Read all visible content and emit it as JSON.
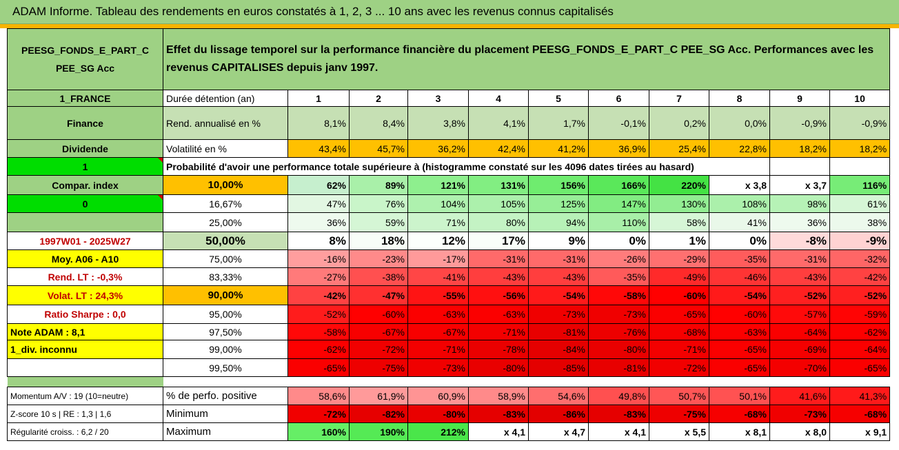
{
  "title": "ADAM Informe. Tableau des rendements en euros constatés à 1, 2, 3 ... 10 ans avec les revenus connus capitalisés",
  "fund": {
    "name_line1": "PEESG_FONDS_E_PART_C",
    "name_line2": "PEE_SG Acc",
    "description": "Effet du lissage temporel sur la performance financière du placement PEESG_FONDS_E_PART_C PEE_SG Acc. Performances avec les revenus CAPITALISES depuis janv 1997."
  },
  "side": {
    "country": "1_FRANCE",
    "sector": "Finance",
    "dividend": "Dividende",
    "one": "1",
    "compar_index": "Compar. index",
    "zero": "0",
    "period": "1997W01 - 2025W27",
    "moy": "Moy. A06 - A10",
    "rend_lt": "Rend. LT :   -0,3%",
    "volat_lt": "Volat. LT :   24,3%",
    "sharpe": "Ratio Sharpe :   0,0",
    "note": "Note ADAM : 8,1",
    "div": "1_div. inconnu",
    "momentum": "Momentum A/V : 19 (10=neutre)",
    "zscore": "Z-score 10 s | RE : 1,3 | 1,6",
    "regularite": "Régularité croiss. : 6,2 / 20"
  },
  "header": {
    "duree_label": "Durée détention (an)",
    "years": [
      "1",
      "2",
      "3",
      "4",
      "5",
      "6",
      "7",
      "8",
      "9",
      "10"
    ],
    "rend_label": "Rend. annualisé en %",
    "rend": [
      "8,1%",
      "8,4%",
      "3,8%",
      "4,1%",
      "1,7%",
      "-0,1%",
      "0,2%",
      "0,0%",
      "-0,9%",
      "-0,9%"
    ],
    "vol_label": "Volatilité en %",
    "vol": [
      "43,4%",
      "45,7%",
      "36,2%",
      "42,4%",
      "41,2%",
      "36,9%",
      "25,4%",
      "22,8%",
      "18,2%",
      "18,2%"
    ],
    "prob_label": "Probabilité d'avoir une performance totale supérieure à (histogramme constaté sur les 4096 dates tirées au hasard)"
  },
  "percentiles": [
    {
      "p": "10,00%",
      "vals": [
        "62%",
        "89%",
        "121%",
        "131%",
        "156%",
        "166%",
        "220%",
        "x 3,8",
        "x 3,7",
        "116%"
      ],
      "colors": [
        "#c6efce",
        "#a9f0a9",
        "#8eef8e",
        "#82ee82",
        "#6fec6f",
        "#5ae85a",
        "#44e244",
        "#ffffff",
        "#ffffff",
        "#77ec77"
      ]
    },
    {
      "p": "16,67%",
      "vals": [
        "47%",
        "76%",
        "104%",
        "105%",
        "125%",
        "147%",
        "130%",
        "108%",
        "98%",
        "61%"
      ],
      "colors": [
        "#e2f7e2",
        "#c9f5c9",
        "#aef1ae",
        "#acf0ac",
        "#97ee97",
        "#82ec82",
        "#92ed92",
        "#abf0ab",
        "#b6f2b6",
        "#d6f6d6"
      ]
    },
    {
      "p": "25,00%",
      "vals": [
        "36%",
        "59%",
        "71%",
        "80%",
        "94%",
        "110%",
        "58%",
        "41%",
        "36%",
        "38%"
      ],
      "colors": [
        "#eefaee",
        "#d5f6d5",
        "#ccf4cc",
        "#c4f3c4",
        "#b7f1b7",
        "#a8efa8",
        "#d6f6d6",
        "#e9f8e9",
        "#eefaee",
        "#ecf9ec"
      ]
    },
    {
      "p": "50,00%",
      "vals": [
        "8%",
        "18%",
        "12%",
        "17%",
        "9%",
        "0%",
        "1%",
        "0%",
        "-8%",
        "-9%"
      ],
      "colors": [
        "#ffffff",
        "#f8fdf8",
        "#fcfffc",
        "#f9fef9",
        "#ffffff",
        "#ffffff",
        "#ffffff",
        "#ffffff",
        "#ffdada",
        "#ffd2d2"
      ]
    },
    {
      "p": "75,00%",
      "vals": [
        "-16%",
        "-23%",
        "-17%",
        "-31%",
        "-31%",
        "-26%",
        "-29%",
        "-35%",
        "-31%",
        "-32%"
      ],
      "colors": [
        "#ff9e9e",
        "#ff8a8a",
        "#ff9a9a",
        "#ff6a6a",
        "#ff6a6a",
        "#ff7c7c",
        "#ff7070",
        "#ff5c5c",
        "#ff6a6a",
        "#ff6666"
      ]
    },
    {
      "p": "83,33%",
      "vals": [
        "-27%",
        "-38%",
        "-41%",
        "-43%",
        "-43%",
        "-35%",
        "-49%",
        "-46%",
        "-43%",
        "-42%"
      ],
      "colors": [
        "#ff7a7a",
        "#ff5050",
        "#ff4646",
        "#ff3e3e",
        "#ff3e3e",
        "#ff5a5a",
        "#ff2a2a",
        "#ff3434",
        "#ff3e3e",
        "#ff4242"
      ]
    },
    {
      "p": "90,00%",
      "vals": [
        "-42%",
        "-47%",
        "-55%",
        "-56%",
        "-54%",
        "-58%",
        "-60%",
        "-54%",
        "-52%",
        "-52%"
      ],
      "colors": [
        "#ff4242",
        "#ff3030",
        "#ff1414",
        "#ff1010",
        "#ff1a1a",
        "#ff0808",
        "#ff0000",
        "#ff1a1a",
        "#ff2020",
        "#ff2020"
      ]
    },
    {
      "p": "95,00%",
      "vals": [
        "-52%",
        "-60%",
        "-63%",
        "-63%",
        "-73%",
        "-73%",
        "-65%",
        "-60%",
        "-57%",
        "-59%"
      ],
      "colors": [
        "#ff1c1c",
        "#ff0000",
        "#fb0000",
        "#fb0000",
        "#f00000",
        "#f00000",
        "#fa0000",
        "#ff0000",
        "#ff0a0a",
        "#ff0404"
      ]
    },
    {
      "p": "97,50%",
      "vals": [
        "-58%",
        "-67%",
        "-67%",
        "-71%",
        "-81%",
        "-76%",
        "-68%",
        "-63%",
        "-64%",
        "-62%"
      ],
      "colors": [
        "#ff0808",
        "#f70000",
        "#f70000",
        "#f30000",
        "#e80000",
        "#ed0000",
        "#f60000",
        "#fb0000",
        "#fa0000",
        "#fc0000"
      ]
    },
    {
      "p": "99,00%",
      "vals": [
        "-62%",
        "-72%",
        "-71%",
        "-78%",
        "-84%",
        "-80%",
        "-71%",
        "-65%",
        "-69%",
        "-64%"
      ],
      "colors": [
        "#fc0000",
        "#f10000",
        "#f30000",
        "#ea0000",
        "#e50000",
        "#e90000",
        "#f30000",
        "#fa0000",
        "#f50000",
        "#fa0000"
      ]
    },
    {
      "p": "99,50%",
      "vals": [
        "-65%",
        "-75%",
        "-73%",
        "-80%",
        "-85%",
        "-81%",
        "-72%",
        "-65%",
        "-70%",
        "-65%"
      ],
      "colors": [
        "#fa0000",
        "#ee0000",
        "#f00000",
        "#e90000",
        "#e40000",
        "#e80000",
        "#f10000",
        "#fa0000",
        "#f40000",
        "#fa0000"
      ]
    }
  ],
  "stats": {
    "pos_label": "% de perfo. positive",
    "pos": [
      "58,6%",
      "61,9%",
      "60,9%",
      "58,9%",
      "54,6%",
      "49,8%",
      "50,7%",
      "50,1%",
      "41,6%",
      "41,3%"
    ],
    "pos_colors": [
      "#ff8a8a",
      "#ff9a9a",
      "#ff9494",
      "#ff8a8a",
      "#ff6e6e",
      "#ff5050",
      "#ff5656",
      "#ff5252",
      "#ff1c1c",
      "#ff1a1a"
    ],
    "min_label": "Minimum",
    "min": [
      "-72%",
      "-82%",
      "-80%",
      "-83%",
      "-86%",
      "-83%",
      "-75%",
      "-68%",
      "-73%",
      "-68%"
    ],
    "min_colors": [
      "#f10000",
      "#e60000",
      "#e90000",
      "#e50000",
      "#e30000",
      "#e50000",
      "#ee0000",
      "#f60000",
      "#f00000",
      "#f60000"
    ],
    "max_label": "Maximum",
    "max": [
      "160%",
      "190%",
      "212%",
      "x 4,1",
      "x 4,7",
      "x 4,1",
      "x 5,5",
      "x 8,1",
      "x 8,0",
      "x 9,1"
    ],
    "max_colors": [
      "#66ee66",
      "#55ea55",
      "#4ae64a",
      "#ffffff",
      "#ffffff",
      "#ffffff",
      "#ffffff",
      "#ffffff",
      "#ffffff",
      "#ffffff"
    ]
  },
  "colors": {
    "green_header": "#9ed184",
    "light_green": "#c6e0b4",
    "orange": "#ffc000",
    "yellow": "#ffff00",
    "bright_green": "#00dd00"
  }
}
